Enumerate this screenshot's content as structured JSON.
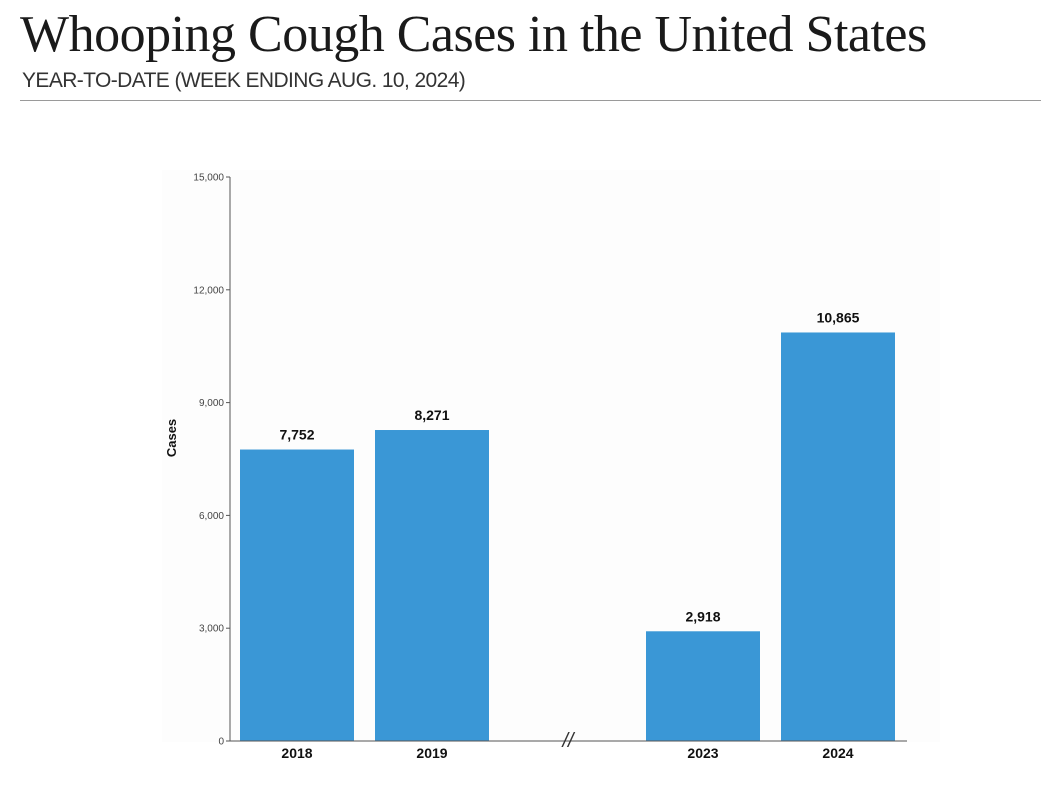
{
  "header": {
    "title": "Whooping Cough Cases in the United States",
    "subtitle": "YEAR-TO-DATE (WEEK ENDING AUG. 10, 2024)"
  },
  "chart_data": {
    "type": "bar",
    "title": "Whooping Cough Cases in the United States",
    "subtitle": "YEAR-TO-DATE (WEEK ENDING AUG. 10, 2024)",
    "categories": [
      "2018",
      "2019",
      "2023",
      "2024"
    ],
    "values": [
      7752,
      8271,
      2918,
      10865
    ],
    "data_labels": [
      "7,752",
      "8,271",
      "2,918",
      "10,865"
    ],
    "xlabel": "",
    "ylabel": "Cases",
    "ylim": [
      0,
      15000
    ],
    "yticks": [
      0,
      3000,
      6000,
      9000,
      12000,
      15000
    ],
    "ytick_labels": [
      "0",
      "3,000",
      "6,000",
      "9,000",
      "12,000",
      "15,000"
    ],
    "axis_break_marker": "//",
    "grid": false,
    "legend": "none",
    "bar_color": "#3a97d6"
  }
}
